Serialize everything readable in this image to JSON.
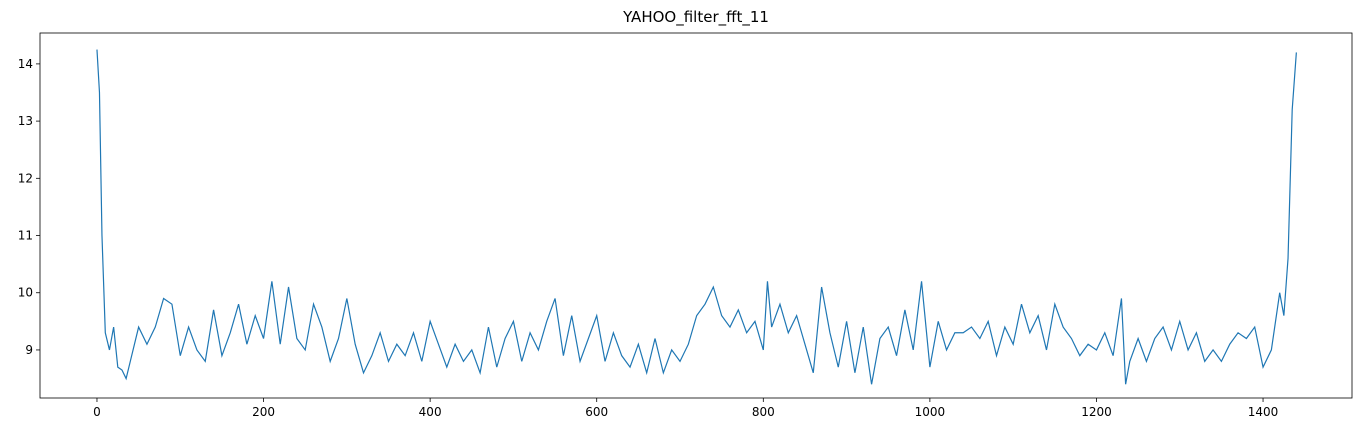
{
  "chart_data": {
    "type": "line",
    "title": "YAHOO_filter_fft_11",
    "x": [
      0,
      3,
      6,
      10,
      15,
      20,
      25,
      30,
      35,
      40,
      50,
      60,
      70,
      80,
      90,
      100,
      110,
      120,
      130,
      140,
      150,
      160,
      170,
      180,
      190,
      200,
      210,
      220,
      230,
      240,
      250,
      260,
      270,
      280,
      290,
      300,
      310,
      320,
      330,
      340,
      350,
      360,
      370,
      380,
      390,
      400,
      410,
      420,
      430,
      440,
      450,
      460,
      470,
      480,
      490,
      500,
      510,
      520,
      530,
      540,
      550,
      560,
      570,
      580,
      590,
      600,
      610,
      620,
      630,
      640,
      650,
      660,
      670,
      680,
      690,
      700,
      710,
      720,
      730,
      740,
      750,
      760,
      770,
      780,
      790,
      800,
      805,
      810,
      820,
      830,
      840,
      850,
      860,
      870,
      880,
      890,
      900,
      910,
      920,
      930,
      940,
      950,
      960,
      970,
      980,
      990,
      1000,
      1010,
      1020,
      1030,
      1040,
      1050,
      1060,
      1070,
      1080,
      1090,
      1100,
      1110,
      1120,
      1130,
      1140,
      1150,
      1160,
      1170,
      1180,
      1190,
      1200,
      1210,
      1220,
      1230,
      1235,
      1240,
      1250,
      1260,
      1270,
      1280,
      1290,
      1300,
      1310,
      1320,
      1330,
      1340,
      1350,
      1360,
      1370,
      1380,
      1390,
      1400,
      1410,
      1420,
      1425,
      1430,
      1435,
      1440
    ],
    "series": [
      {
        "name": "YAHOO_filter_fft_11",
        "color": "#1f77b4",
        "values": [
          14.25,
          13.5,
          11.0,
          9.3,
          9.0,
          9.4,
          8.7,
          8.65,
          8.5,
          8.8,
          9.4,
          9.1,
          9.4,
          9.9,
          9.8,
          8.9,
          9.4,
          9.0,
          8.8,
          9.7,
          8.9,
          9.3,
          9.8,
          9.1,
          9.6,
          9.2,
          10.2,
          9.1,
          10.1,
          9.2,
          9.0,
          9.8,
          9.4,
          8.8,
          9.2,
          9.9,
          9.1,
          8.6,
          8.9,
          9.3,
          8.8,
          9.1,
          8.9,
          9.3,
          8.8,
          9.5,
          9.1,
          8.7,
          9.1,
          8.8,
          9.0,
          8.6,
          9.4,
          8.7,
          9.2,
          9.5,
          8.8,
          9.3,
          9.0,
          9.5,
          9.9,
          8.9,
          9.6,
          8.8,
          9.2,
          9.6,
          8.8,
          9.3,
          8.9,
          8.7,
          9.1,
          8.6,
          9.2,
          8.6,
          9.0,
          8.8,
          9.1,
          9.6,
          9.8,
          10.1,
          9.6,
          9.4,
          9.7,
          9.3,
          9.5,
          9.0,
          10.2,
          9.4,
          9.8,
          9.3,
          9.6,
          9.1,
          8.6,
          10.1,
          9.3,
          8.7,
          9.5,
          8.6,
          9.4,
          8.4,
          9.2,
          9.4,
          8.9,
          9.7,
          9.0,
          10.2,
          8.7,
          9.5,
          9.0,
          9.3,
          9.3,
          9.4,
          9.2,
          9.5,
          8.9,
          9.4,
          9.1,
          9.8,
          9.3,
          9.6,
          9.0,
          9.8,
          9.4,
          9.2,
          8.9,
          9.1,
          9.0,
          9.3,
          8.9,
          9.9,
          8.4,
          8.8,
          9.2,
          8.8,
          9.2,
          9.4,
          9.0,
          9.5,
          9.0,
          9.3,
          8.8,
          9.0,
          8.8,
          9.1,
          9.3,
          9.2,
          9.4,
          8.7,
          9.0,
          10.0,
          9.6,
          10.6,
          13.2,
          14.2
        ]
      }
    ],
    "xlim": [
      -68.4,
      1506.8
    ],
    "ylim": [
      8.16,
      14.54
    ],
    "xticks": [
      0,
      200,
      400,
      600,
      800,
      1000,
      1200,
      1400
    ],
    "yticks": [
      9,
      10,
      11,
      12,
      13,
      14
    ]
  }
}
